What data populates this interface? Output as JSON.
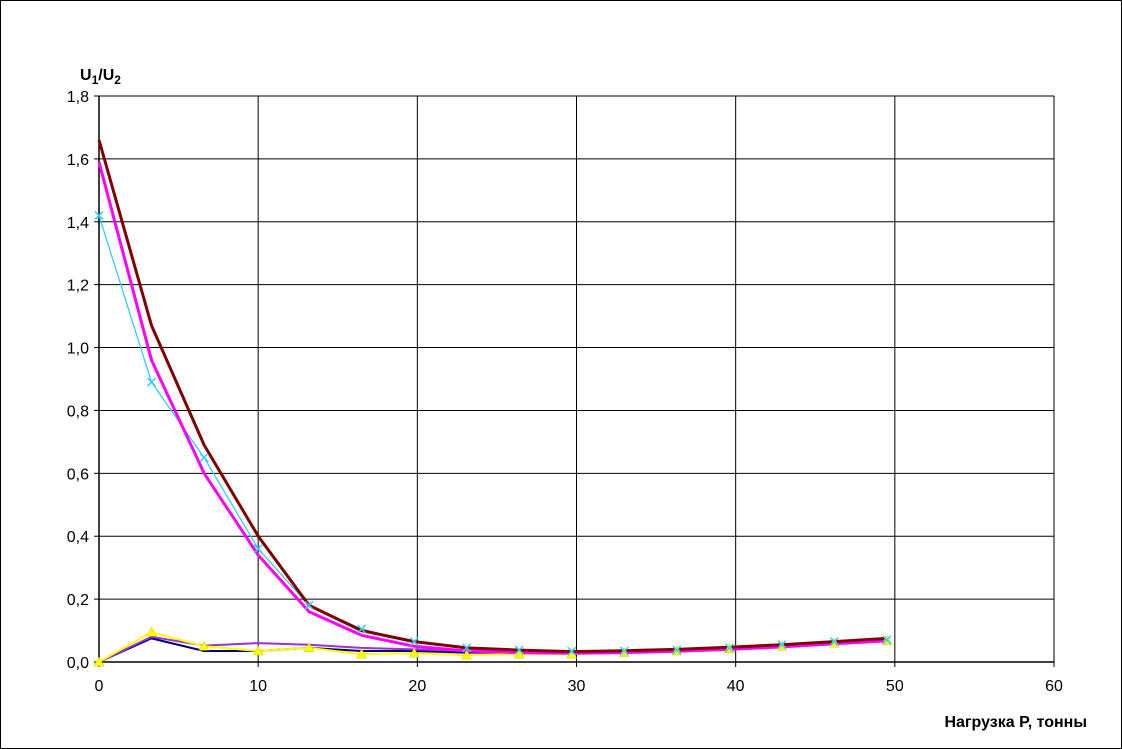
{
  "chart_data": {
    "type": "line",
    "title": "",
    "ylabel": {
      "main": "U",
      "sub1": "1",
      "slash": "/U",
      "sub2": "2"
    },
    "xlabel": "Нагрузка P, тонны",
    "xlim": [
      0,
      60
    ],
    "ylim": [
      0,
      1.8
    ],
    "x_ticks": [
      "0",
      "10",
      "20",
      "30",
      "40",
      "50",
      "60"
    ],
    "y_ticks": [
      "0,0",
      "0,2",
      "0,4",
      "0,6",
      "0,8",
      "1,0",
      "1,2",
      "1,4",
      "1,6",
      "1,8"
    ],
    "grid": true,
    "series": [
      {
        "color": "#800000",
        "marker": "none",
        "x": [
          0,
          3.3,
          6.6,
          10,
          13.2,
          16.5,
          19.8,
          23.1,
          26.4,
          29.7,
          33,
          36.3,
          39.6,
          42.9,
          46.2,
          49.5
        ],
        "y": [
          1.66,
          1.07,
          0.69,
          0.4,
          0.18,
          0.1,
          0.065,
          0.045,
          0.038,
          0.033,
          0.036,
          0.04,
          0.047,
          0.055,
          0.065,
          0.075
        ]
      },
      {
        "color": "#ff00ff",
        "marker": "none",
        "x": [
          0,
          3.3,
          6.6,
          10,
          13.2,
          16.5,
          19.8,
          23.1,
          26.4,
          29.7,
          33,
          36.3,
          39.6,
          42.9,
          46.2,
          49.5
        ],
        "y": [
          1.59,
          0.96,
          0.6,
          0.34,
          0.16,
          0.085,
          0.05,
          0.035,
          0.03,
          0.028,
          0.03,
          0.034,
          0.04,
          0.048,
          0.058,
          0.067
        ]
      },
      {
        "color": "#33ccff",
        "marker": "x",
        "x": [
          0,
          3.3,
          6.6,
          10,
          13.2,
          16.5,
          19.8,
          23.1,
          26.4,
          29.7,
          33,
          36.3,
          39.6,
          42.9,
          46.2,
          49.5
        ],
        "y": [
          1.42,
          0.89,
          0.65,
          0.36,
          0.18,
          0.105,
          0.065,
          0.045,
          0.038,
          0.034,
          0.035,
          0.038,
          0.045,
          0.055,
          0.065,
          0.07
        ]
      },
      {
        "color": "#000080",
        "marker": "none",
        "x": [
          0,
          3.3,
          6.6,
          10,
          13.2,
          16.5,
          19.8,
          23.1,
          26.4,
          29.7,
          33,
          36.3,
          39.6,
          42.9,
          46.2,
          49.5
        ],
        "y": [
          0.0,
          0.075,
          0.035,
          0.035,
          0.045,
          0.035,
          0.035,
          0.03,
          0.03,
          0.03,
          0.032,
          0.036,
          0.043,
          0.052,
          0.062,
          0.072
        ]
      },
      {
        "color": "#9933cc",
        "marker": "none",
        "x": [
          0,
          3.3,
          6.6,
          10,
          13.2,
          16.5,
          19.8,
          23.1,
          26.4,
          29.7,
          33,
          36.3,
          39.6,
          42.9,
          46.2,
          49.5
        ],
        "y": [
          0.0,
          0.08,
          0.052,
          0.06,
          0.055,
          0.045,
          0.04,
          0.035,
          0.033,
          0.03,
          0.032,
          0.036,
          0.043,
          0.052,
          0.062,
          0.072
        ]
      },
      {
        "color": "#ffff00",
        "marker": "triangle",
        "x": [
          0,
          3.3,
          6.6,
          10,
          13.2,
          16.5,
          19.8,
          23.1,
          26.4,
          29.7,
          33,
          36.3,
          39.6,
          42.9,
          46.2,
          49.5
        ],
        "y": [
          0.0,
          0.095,
          0.05,
          0.035,
          0.045,
          0.025,
          0.028,
          0.022,
          0.025,
          0.025,
          0.03,
          0.035,
          0.042,
          0.05,
          0.06,
          0.068
        ]
      }
    ]
  }
}
